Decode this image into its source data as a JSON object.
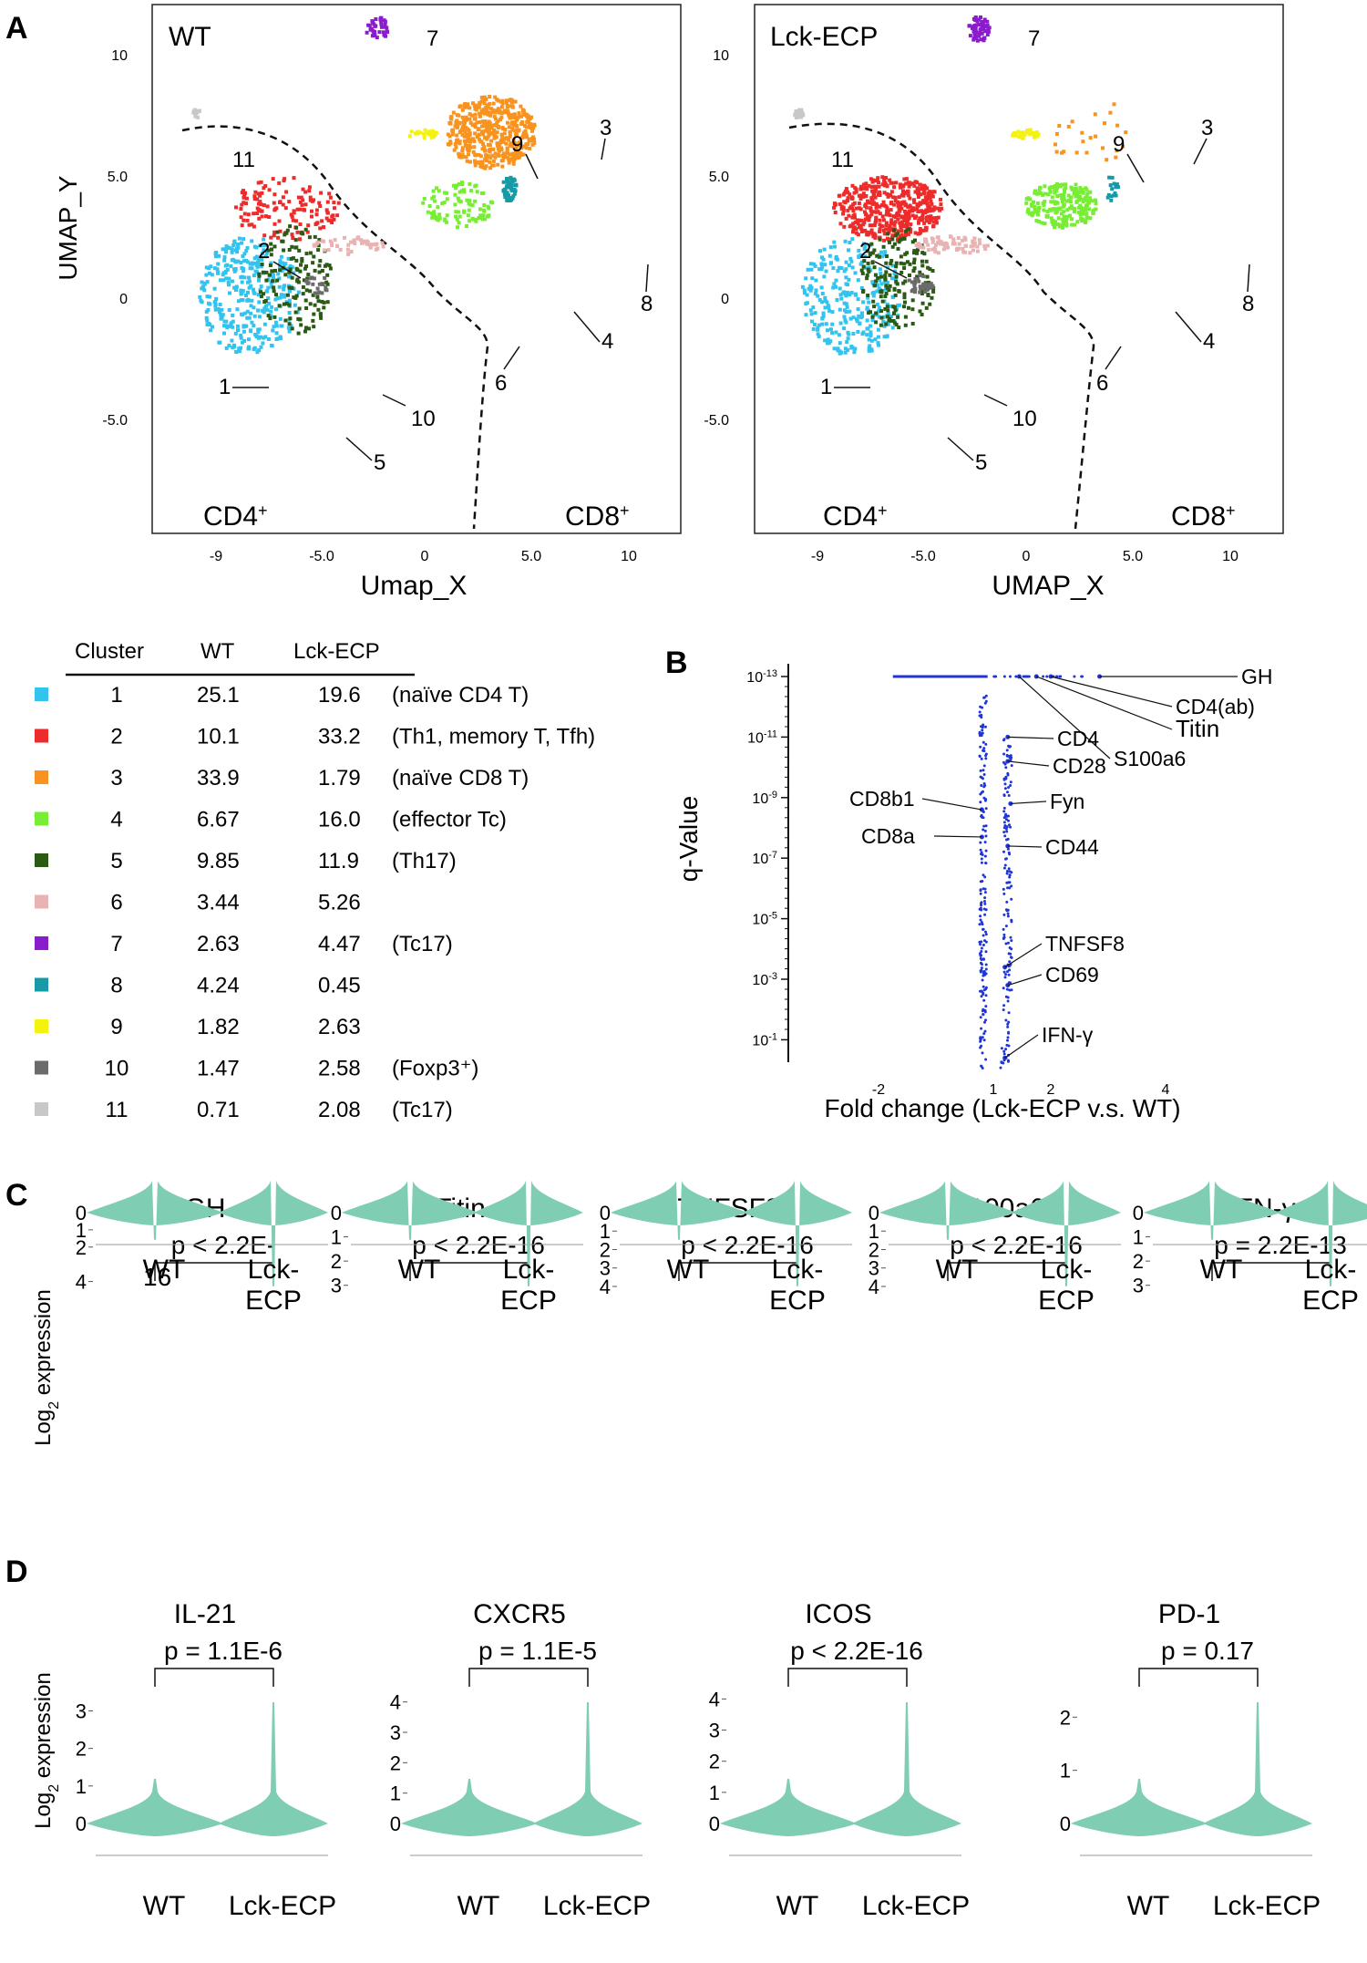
{
  "panel_letters": [
    "A",
    "B",
    "C",
    "D"
  ],
  "colors": {
    "c1": "#33c3ef",
    "c2": "#ee2b2b",
    "c3": "#f7931e",
    "c4": "#77ee33",
    "c5": "#2b5a14",
    "c6": "#e9b3b3",
    "c7": "#8a1ccc",
    "c8": "#169aa6",
    "c9": "#f4f20f",
    "c10": "#6b6b6b",
    "c11": "#c8c8c8",
    "violin": "#7fcdb2",
    "volcano": "#1f35d8"
  },
  "umap": {
    "wt": {
      "label": "WT",
      "xlabel": "Umap_X",
      "ylabel": "UMAP_Y",
      "y_ticks": [
        "10",
        "5.0",
        "0",
        "-5.0"
      ],
      "x_ticks": [
        "-9",
        "-5.0",
        "0",
        "5.0",
        "10"
      ],
      "cd4": "CD4",
      "cd8": "CD8",
      "sup": "+",
      "cluster_labels": [
        "1",
        "2",
        "3",
        "4",
        "5",
        "6",
        "7",
        "8",
        "9",
        "10",
        "11"
      ],
      "cluster_fractions": [
        0.251,
        0.101,
        0.339,
        0.0667,
        0.0985,
        0.0344,
        0.0263,
        0.0424,
        0.0182,
        0.0147,
        0.0071
      ]
    },
    "ecp": {
      "label": "Lck-ECP",
      "xlabel": "UMAP_X",
      "y_ticks": [
        "10",
        "5.0",
        "0",
        "-5.0"
      ],
      "x_ticks": [
        "-9",
        "-5.0",
        "0",
        "5.0",
        "10"
      ],
      "cd4": "CD4",
      "cd8": "CD8",
      "sup": "+",
      "cluster_labels": [
        "1",
        "2",
        "3",
        "4",
        "5",
        "6",
        "7",
        "8",
        "9",
        "10",
        "11"
      ],
      "cluster_fractions": [
        0.196,
        0.332,
        0.0179,
        0.16,
        0.119,
        0.0526,
        0.0447,
        0.0045,
        0.0263,
        0.0258,
        0.0208
      ]
    }
  },
  "table": {
    "headers": [
      "Cluster",
      "WT",
      "Lck-ECP"
    ],
    "rows": [
      {
        "cluster": "1",
        "wt": "25.1",
        "ecp": "19.6",
        "note": "(naïve CD4 T)"
      },
      {
        "cluster": "2",
        "wt": "10.1",
        "ecp": "33.2",
        "note": "(Th1, memory T, Tfh)"
      },
      {
        "cluster": "3",
        "wt": "33.9",
        "ecp": "1.79",
        "note": "(naïve CD8 T)"
      },
      {
        "cluster": "4",
        "wt": "6.67",
        "ecp": "16.0",
        "note": "(effector Tc)"
      },
      {
        "cluster": "5",
        "wt": "9.85",
        "ecp": "11.9",
        "note": "(Th17)"
      },
      {
        "cluster": "6",
        "wt": "3.44",
        "ecp": "5.26",
        "note": ""
      },
      {
        "cluster": "7",
        "wt": "2.63",
        "ecp": "4.47",
        "note": "(Tc17)"
      },
      {
        "cluster": "8",
        "wt": "4.24",
        "ecp": "0.45",
        "note": ""
      },
      {
        "cluster": "9",
        "wt": "1.82",
        "ecp": "2.63",
        "note": ""
      },
      {
        "cluster": "10",
        "wt": "1.47",
        "ecp": "2.58",
        "note": "(Foxp3⁺)"
      },
      {
        "cluster": "11",
        "wt": "0.71",
        "ecp": "2.08",
        "note": "(Tc17)"
      }
    ]
  },
  "volcano": {
    "ylabel": "q-Value",
    "xlabel": "Fold change (Lck-ECP v.s. WT)",
    "y_tick_base": "10",
    "y_tick_exps": [
      "-13",
      "-11",
      "-9",
      "-7",
      "-5",
      "-3",
      "-1"
    ],
    "x_ticks": [
      "-2",
      "1",
      "2",
      "4"
    ],
    "genes": [
      {
        "name": "GH",
        "fc": 2.85,
        "log_q": -13
      },
      {
        "name": "CD4(ab)",
        "fc": 2.0,
        "log_q": -13
      },
      {
        "name": "Titin",
        "fc": 1.75,
        "log_q": -13
      },
      {
        "name": "S100a6",
        "fc": 1.45,
        "log_q": -13
      },
      {
        "name": "CD4",
        "fc": 1.25,
        "log_q": -11.0
      },
      {
        "name": "CD28",
        "fc": 1.25,
        "log_q": -10.2
      },
      {
        "name": "Fyn",
        "fc": 1.3,
        "log_q": -8.8
      },
      {
        "name": "CD8b1",
        "fc": 0.8,
        "log_q": -8.6
      },
      {
        "name": "CD8a",
        "fc": 0.8,
        "log_q": -7.7
      },
      {
        "name": "CD44",
        "fc": 1.25,
        "log_q": -7.4
      },
      {
        "name": "TNFSF8",
        "fc": 1.2,
        "log_q": -3.4
      },
      {
        "name": "CD69",
        "fc": 1.25,
        "log_q": -2.8
      },
      {
        "name": "IFN-γ",
        "fc": 1.2,
        "log_q": -0.4
      }
    ]
  },
  "panel_c": {
    "ylabel": "Log",
    "ylabel_sub": "2",
    "ylabel_end": " expression",
    "group_labels": [
      "WT",
      "Lck-",
      "ECP"
    ],
    "plots": [
      {
        "gene": "GH",
        "p": "p < 2.2E-",
        "p2": "16",
        "ticks": [
          "4",
          "2",
          "1",
          "0"
        ],
        "ymax": 4.5
      },
      {
        "gene": "Titin",
        "p": "p < 2.2E-16",
        "p2": "",
        "ticks": [
          "3",
          "2",
          "1",
          "0"
        ],
        "ymax": 3.2
      },
      {
        "gene": "TNFSF8",
        "p": "p < 2.2E-16",
        "p2": "",
        "ticks": [
          "4",
          "3",
          "2",
          "1",
          "0"
        ],
        "ymax": 4.2
      },
      {
        "gene": "S100a6",
        "p": "p < 2.2E-16",
        "p2": "",
        "ticks": [
          "4",
          "3",
          "2",
          "1",
          "0"
        ],
        "ymax": 4.2
      },
      {
        "gene": "IFN-γ",
        "p": "p = 2.2E-13",
        "p2": "",
        "ticks": [
          "3",
          "2",
          "1",
          "0"
        ],
        "ymax": 3.2
      }
    ]
  },
  "panel_d": {
    "ylabel": "Log",
    "ylabel_sub": "2",
    "ylabel_end": " expression",
    "group_labels": [
      "WT",
      "Lck-ECP"
    ],
    "plots": [
      {
        "gene": "IL-21",
        "p": "p = 1.1E-6",
        "ticks": [
          "3",
          "2",
          "1",
          "0"
        ],
        "ymax": 3.4
      },
      {
        "gene": "CXCR5",
        "p": "p = 1.1E-5",
        "ticks": [
          "4",
          "3",
          "2",
          "1",
          "0"
        ],
        "ymax": 4.2
      },
      {
        "gene": "ICOS",
        "p": "p < 2.2E-16",
        "ticks": [
          "4",
          "3",
          "2",
          "1",
          "0"
        ],
        "ymax": 4.1
      },
      {
        "gene": "PD-1",
        "p": "p = 0.17",
        "ticks": [
          "2",
          "1",
          "0"
        ],
        "ymax": 2.4
      }
    ]
  }
}
